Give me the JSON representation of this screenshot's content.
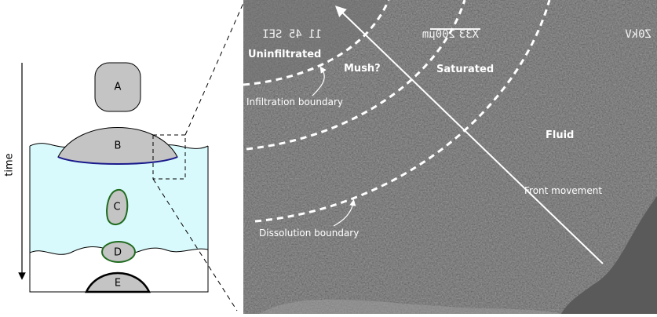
{
  "schematic": {
    "axis_label": "time",
    "shapes": [
      "A",
      "B",
      "C",
      "D",
      "E"
    ]
  },
  "micrograph": {
    "header": [
      "Z0kV",
      "X33",
      "200μm",
      "11 45 SEI"
    ],
    "regions": [
      "Uninfiltrated",
      "Mush?",
      "Saturated",
      "Fluid"
    ],
    "boundaries": [
      "Infiltration boundary",
      "Dissolution boundary"
    ],
    "arrow_label": "Front movement"
  }
}
